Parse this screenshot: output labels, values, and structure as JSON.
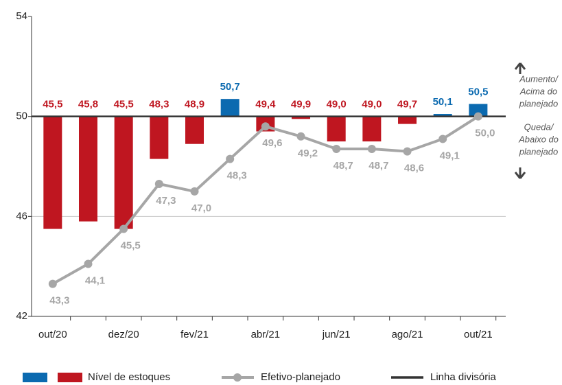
{
  "chart_data": {
    "type": "bar-line",
    "categories": [
      "out/20",
      null,
      "dez/20",
      null,
      "fev/21",
      null,
      "abr/21",
      null,
      "jun/21",
      null,
      "ago/21",
      null,
      "out/21"
    ],
    "baseline": 50,
    "series": [
      {
        "name": "Nível de estoques",
        "type": "bar",
        "color_above": "#0b6ab0",
        "color_below": "#bf1620",
        "values": [
          45.5,
          45.8,
          45.5,
          48.3,
          48.9,
          50.7,
          49.4,
          49.9,
          49.0,
          49.0,
          49.7,
          50.1,
          50.5
        ],
        "value_labels": [
          "45,5",
          "45,8",
          "45,5",
          "48,3",
          "48,9",
          "50,7",
          "49,4",
          "49,9",
          "49,0",
          "49,0",
          "49,7",
          "50,1",
          "50,5"
        ]
      },
      {
        "name": "Efetivo-planejado",
        "type": "line",
        "color": "#a6a6a6",
        "values": [
          43.3,
          44.1,
          45.5,
          47.3,
          47.0,
          48.3,
          49.6,
          49.2,
          48.7,
          48.7,
          48.6,
          49.1,
          50.0
        ],
        "value_labels": [
          "43,3",
          "44,1",
          "45,5",
          "47,3",
          "47,0",
          "48,3",
          "49,6",
          "49,2",
          "48,7",
          "48,7",
          "48,6",
          "49,1",
          "50,0"
        ]
      }
    ],
    "divider": {
      "name": "Linha divisória",
      "color": "#333333"
    },
    "annotations": {
      "above": [
        "Aumento/",
        "Acima do",
        "planejado"
      ],
      "below": [
        "Queda/",
        "Abaixo do",
        "planejado"
      ]
    },
    "ylim": [
      42,
      54
    ],
    "yticks": [
      42,
      46,
      50,
      54
    ],
    "grid": true
  }
}
